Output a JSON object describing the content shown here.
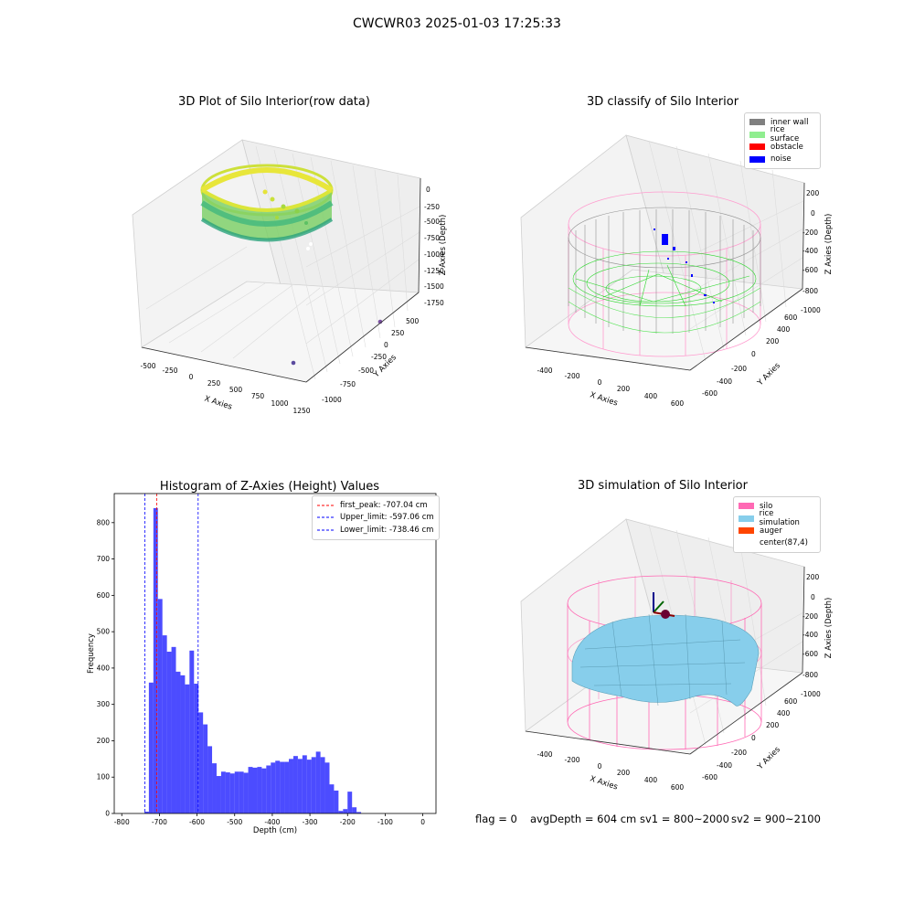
{
  "figure": {
    "suptitle": "CWCWR03 2025-01-03 17:25:33"
  },
  "panels": {
    "raw": {
      "title": "3D Plot of Silo Interior(row data)",
      "x_label": "X Axies",
      "y_label": "Y Axies",
      "z_label": "Z Axies (Depth)",
      "x_ticks": [
        "-500",
        "-250",
        "0",
        "250",
        "500",
        "750",
        "1000",
        "1250"
      ],
      "y_ticks": [
        "-1000",
        "-750",
        "-500",
        "-250",
        "0",
        "250",
        "500"
      ],
      "z_ticks": [
        "0",
        "-250",
        "-500",
        "-750",
        "-1000",
        "-1250",
        "-1500",
        "-1750"
      ]
    },
    "classify": {
      "title": "3D classify of Silo Interior",
      "x_label": "X Axies",
      "y_label": "Y Axies",
      "z_label": "Z Axies (Depth)",
      "x_ticks": [
        "-400",
        "-200",
        "0",
        "200",
        "400",
        "600"
      ],
      "y_ticks": [
        "-600",
        "-400",
        "-200",
        "0",
        "200",
        "400",
        "600"
      ],
      "z_ticks": [
        "200",
        "0",
        "-200",
        "-400",
        "-600",
        "-800",
        "-1000"
      ],
      "legend": [
        {
          "label": "inner wall",
          "color": "#808080"
        },
        {
          "label": "rice surface",
          "color": "#90ee90"
        },
        {
          "label": "obstacle",
          "color": "#ff0000"
        },
        {
          "label": "noise",
          "color": "#0000ff"
        }
      ]
    },
    "simulation": {
      "title": "3D simulation of Silo Interior",
      "x_label": "X Axies",
      "y_label": "Y Axies",
      "z_label": "Z Axies (Depth)",
      "x_ticks": [
        "-400",
        "-200",
        "0",
        "200",
        "400",
        "600"
      ],
      "y_ticks": [
        "-600",
        "-400",
        "-200",
        "0",
        "200",
        "400",
        "600"
      ],
      "z_ticks": [
        "200",
        "0",
        "-200",
        "-400",
        "-600",
        "-800",
        "-1000"
      ],
      "legend": [
        {
          "label": "silo",
          "color": "#ff69b4"
        },
        {
          "label": "rice simulation",
          "color": "#87ceeb"
        },
        {
          "label": "auger",
          "color": "#ff4500"
        },
        {
          "label": "center(87,4)",
          "color": ""
        }
      ]
    }
  },
  "footer": {
    "flag": "flag = 0",
    "avg_depth": "avgDepth = 604 cm",
    "sv1": "sv1 = 800~2000",
    "sv2": "sv2 = 900~2100"
  },
  "chart_data": [
    {
      "type": "histogram",
      "title": "Histogram of Z-Axies (Height) Values",
      "xlabel": "Depth (cm)",
      "ylabel": "Frequency",
      "xlim": [
        -820,
        35
      ],
      "ylim": [
        0,
        880
      ],
      "x_ticks": [
        -800,
        -700,
        -600,
        -500,
        -400,
        -300,
        -200,
        -100,
        0
      ],
      "y_ticks": [
        0,
        100,
        200,
        300,
        400,
        500,
        600,
        700,
        800
      ],
      "bar_color": "#0000ff",
      "bin_edges": [
        -740,
        -728,
        -716,
        -704,
        -692,
        -680,
        -668,
        -656,
        -644,
        -632,
        -620,
        -608,
        -596,
        -584,
        -572,
        -560,
        -548,
        -536,
        -524,
        -512,
        -500,
        -488,
        -476,
        -464,
        -452,
        -440,
        -428,
        -416,
        -404,
        -392,
        -380,
        -368,
        -356,
        -344,
        -332,
        -320,
        -308,
        -296,
        -284,
        -272,
        -260,
        -248,
        -236,
        -224,
        -212,
        -200,
        -188,
        -176,
        -164,
        -152,
        -140,
        -128,
        -116,
        -104,
        -92,
        -80,
        -68,
        -56,
        -44,
        -32,
        -20,
        -8,
        4
      ],
      "counts": [
        5,
        360,
        840,
        590,
        490,
        445,
        458,
        390,
        380,
        355,
        448,
        357,
        278,
        245,
        185,
        138,
        103,
        115,
        113,
        110,
        115,
        115,
        112,
        128,
        126,
        128,
        124,
        132,
        140,
        145,
        142,
        142,
        150,
        158,
        150,
        160,
        148,
        155,
        170,
        155,
        140,
        80,
        63,
        7,
        12,
        60,
        17,
        4,
        0,
        0,
        0,
        0,
        0,
        0,
        0,
        0,
        0,
        0,
        0,
        0,
        0,
        0
      ],
      "lines": [
        {
          "label": "first_peak: -707.04 cm",
          "x": -707.04,
          "color": "#ff0000"
        },
        {
          "label": "Upper_limit: -597.06 cm",
          "x": -597.06,
          "color": "#0000ff"
        },
        {
          "label": "Lower_limit: -738.46 cm",
          "x": -738.46,
          "color": "#0000ff"
        }
      ]
    },
    {
      "type": "scatter3d",
      "title": "3D Plot of Silo Interior(row data)",
      "xlim": [
        -600,
        1300
      ],
      "ylim": [
        -1000,
        600
      ],
      "zlim": [
        -1800,
        50
      ],
      "outliers": [
        {
          "x": 1150,
          "y": 500,
          "z": -1700
        },
        {
          "x": 700,
          "y": -300,
          "z": -1800
        }
      ]
    }
  ]
}
